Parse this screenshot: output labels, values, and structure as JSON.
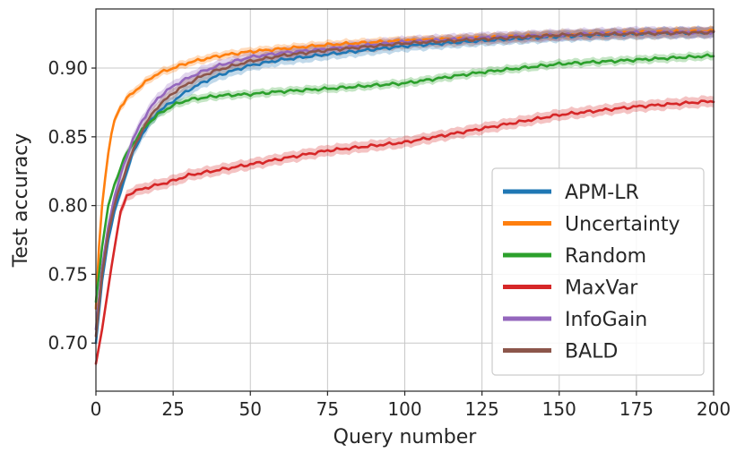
{
  "chart_data": {
    "type": "line",
    "title": "",
    "xlabel": "Query number",
    "ylabel": "Test accuracy",
    "xlim": [
      0,
      200
    ],
    "ylim": [
      0.665,
      0.943
    ],
    "xticks": [
      0,
      25,
      50,
      75,
      100,
      125,
      150,
      175,
      200
    ],
    "yticks": [
      0.7,
      0.75,
      0.8,
      0.85,
      0.9
    ],
    "xtick_labels": [
      "0",
      "25",
      "50",
      "75",
      "100",
      "125",
      "150",
      "175",
      "200"
    ],
    "ytick_labels": [
      "0.70",
      "0.75",
      "0.80",
      "0.85",
      "0.90"
    ],
    "grid": true,
    "legend_position": "lower-right",
    "series": [
      {
        "name": "APM-LR",
        "color": "#1f77b4",
        "x": [
          0,
          2,
          4,
          6,
          8,
          10,
          12,
          15,
          18,
          20,
          25,
          30,
          35,
          40,
          50,
          60,
          75,
          100,
          125,
          150,
          175,
          200
        ],
        "y": [
          0.7,
          0.745,
          0.775,
          0.795,
          0.81,
          0.825,
          0.838,
          0.852,
          0.862,
          0.868,
          0.876,
          0.884,
          0.89,
          0.895,
          0.902,
          0.906,
          0.91,
          0.916,
          0.92,
          0.923,
          0.925,
          0.926
        ],
        "band": 0.004
      },
      {
        "name": "Uncertainty",
        "color": "#ff7f0e",
        "x": [
          0,
          1,
          2,
          3,
          4,
          5,
          6,
          8,
          10,
          12,
          15,
          18,
          20,
          25,
          30,
          40,
          50,
          60,
          75,
          100,
          125,
          150,
          175,
          200
        ],
        "y": [
          0.725,
          0.77,
          0.8,
          0.82,
          0.838,
          0.852,
          0.862,
          0.872,
          0.878,
          0.882,
          0.888,
          0.893,
          0.896,
          0.9,
          0.904,
          0.909,
          0.912,
          0.914,
          0.917,
          0.92,
          0.922,
          0.924,
          0.926,
          0.927
        ],
        "band": 0.003
      },
      {
        "name": "Random",
        "color": "#2ca02c",
        "x": [
          0,
          2,
          4,
          6,
          8,
          10,
          12,
          15,
          18,
          20,
          25,
          30,
          40,
          50,
          60,
          75,
          100,
          125,
          150,
          175,
          200
        ],
        "y": [
          0.73,
          0.77,
          0.8,
          0.815,
          0.828,
          0.838,
          0.845,
          0.855,
          0.862,
          0.866,
          0.873,
          0.877,
          0.88,
          0.881,
          0.883,
          0.885,
          0.889,
          0.897,
          0.903,
          0.906,
          0.909
        ],
        "band": 0.003
      },
      {
        "name": "MaxVar",
        "color": "#d62728",
        "x": [
          0,
          2,
          4,
          6,
          8,
          10,
          12,
          15,
          18,
          20,
          25,
          30,
          40,
          50,
          60,
          75,
          100,
          125,
          150,
          175,
          200
        ],
        "y": [
          0.685,
          0.71,
          0.74,
          0.77,
          0.795,
          0.807,
          0.81,
          0.812,
          0.814,
          0.815,
          0.818,
          0.822,
          0.826,
          0.83,
          0.834,
          0.84,
          0.846,
          0.856,
          0.866,
          0.872,
          0.876
        ],
        "band": 0.004
      },
      {
        "name": "InfoGain",
        "color": "#9467bd",
        "x": [
          0,
          2,
          4,
          6,
          8,
          10,
          12,
          15,
          18,
          20,
          25,
          30,
          35,
          40,
          50,
          60,
          75,
          100,
          125,
          150,
          175,
          200
        ],
        "y": [
          0.71,
          0.755,
          0.785,
          0.806,
          0.822,
          0.836,
          0.848,
          0.862,
          0.872,
          0.878,
          0.887,
          0.893,
          0.898,
          0.902,
          0.908,
          0.911,
          0.914,
          0.919,
          0.922,
          0.924,
          0.926,
          0.926
        ],
        "band": 0.004
      },
      {
        "name": "BALD",
        "color": "#8c564b",
        "x": [
          0,
          2,
          4,
          6,
          8,
          10,
          12,
          15,
          18,
          20,
          25,
          30,
          35,
          40,
          50,
          60,
          75,
          100,
          125,
          150,
          175,
          200
        ],
        "y": [
          0.705,
          0.75,
          0.78,
          0.8,
          0.815,
          0.828,
          0.84,
          0.855,
          0.866,
          0.872,
          0.882,
          0.889,
          0.895,
          0.899,
          0.905,
          0.909,
          0.913,
          0.918,
          0.921,
          0.924,
          0.925,
          0.926
        ],
        "band": 0.004
      }
    ]
  }
}
